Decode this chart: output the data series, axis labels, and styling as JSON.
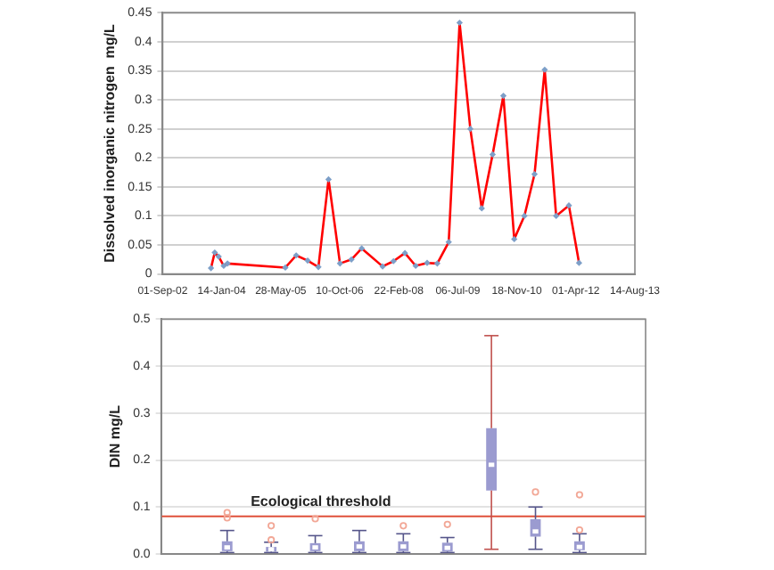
{
  "chart_data": [
    {
      "type": "line",
      "ylabel": "Dissolved inorganic nitrogen  mg/L",
      "x": [
        "2003-10-15",
        "2003-11-16",
        "2003-12-19",
        "2004-01-31",
        "2004-03-03",
        "2005-07-06",
        "2005-10-06",
        "2006-01-11",
        "2006-04-12",
        "2006-07-07",
        "2006-10-12",
        "2007-01-17",
        "2007-04-14",
        "2007-10-08",
        "2008-01-08",
        "2008-04-14",
        "2008-07-14",
        "2008-10-19",
        "2009-01-13",
        "2009-04-20",
        "2009-07-21",
        "2009-10-20",
        "2010-01-25",
        "2010-04-27",
        "2010-07-27",
        "2010-10-27",
        "2011-01-21",
        "2011-04-17",
        "2011-07-12",
        "2011-10-17",
        "2012-02-02",
        "2012-04-28"
      ],
      "series": [
        {
          "color": "#ff0000",
          "values": [
            0.01,
            0.037,
            0.03,
            0.014,
            0.018,
            0.011,
            0.032,
            0.023,
            0.012,
            0.163,
            0.018,
            0.025,
            0.044,
            0.013,
            0.022,
            0.036,
            0.014,
            0.019,
            0.018,
            0.055,
            0.433,
            0.25,
            0.113,
            0.206,
            0.307,
            0.06,
            0.1,
            0.172,
            0.352,
            0.1,
            0.118,
            0.019
          ]
        }
      ],
      "xlim": [
        "2002-09-01",
        "2013-08-14"
      ],
      "xticks": [
        {
          "value": "2002-09-01",
          "label": "01-Sep-02"
        },
        {
          "value": "2004-01-14",
          "label": "14-Jan-04"
        },
        {
          "value": "2005-05-28",
          "label": "28-May-05"
        },
        {
          "value": "2006-10-10",
          "label": "10-Oct-06"
        },
        {
          "value": "2008-02-22",
          "label": "22-Feb-08"
        },
        {
          "value": "2009-07-06",
          "label": "06-Jul-09"
        },
        {
          "value": "2010-11-18",
          "label": "18-Nov-10"
        },
        {
          "value": "2012-04-01",
          "label": "01-Apr-12"
        },
        {
          "value": "2013-08-14",
          "label": "14-Aug-13"
        }
      ],
      "ylim": [
        0,
        0.45
      ],
      "yticks": [
        0,
        0.05,
        0.1,
        0.15,
        0.2,
        0.25,
        0.3,
        0.35,
        0.4,
        0.45
      ],
      "grid": "y",
      "legend": false,
      "marker": "diamond",
      "line_style": "solid"
    },
    {
      "type": "box",
      "ylabel": "DIN mg/L",
      "categories": [
        null,
        null,
        null,
        null,
        null,
        null,
        null,
        null,
        null,
        null,
        null
      ],
      "series": [
        {
          "color": "#9b9bd0",
          "boxes": [
            null,
            {
              "low": 0.003,
              "q1": 0.006,
              "median": 0.014,
              "q3": 0.027,
              "high": 0.05,
              "outliers": [
                0.077,
                0.088
              ]
            },
            {
              "low": 0.003,
              "q1": 0.005,
              "median": 0.01,
              "q3": 0.015,
              "high": 0.025,
              "outliers": [
                0.03,
                0.06
              ]
            },
            {
              "low": 0.003,
              "q1": 0.006,
              "median": 0.014,
              "q3": 0.023,
              "high": 0.039,
              "outliers": [
                0.075
              ]
            },
            {
              "low": 0.003,
              "q1": 0.006,
              "median": 0.016,
              "q3": 0.027,
              "high": 0.05
            },
            {
              "low": 0.003,
              "q1": 0.006,
              "median": 0.016,
              "q3": 0.027,
              "high": 0.043,
              "outliers": [
                0.06
              ]
            },
            {
              "low": 0.003,
              "q1": 0.005,
              "median": 0.013,
              "q3": 0.024,
              "high": 0.035,
              "outliers": [
                0.063
              ]
            },
            {
              "low": 0.01,
              "q1": 0.135,
              "median": 0.19,
              "q3": 0.268,
              "high": 0.465
            },
            {
              "low": 0.01,
              "q1": 0.037,
              "median": 0.048,
              "q3": 0.074,
              "high": 0.1,
              "outliers": [
                0.132
              ]
            },
            {
              "low": 0.003,
              "q1": 0.008,
              "median": 0.015,
              "q3": 0.027,
              "high": 0.043,
              "outliers": [
                0.051,
                0.126
              ]
            },
            null
          ]
        }
      ],
      "ylim": [
        0,
        0.5
      ],
      "yticks": [
        {
          "value": 0,
          "label": "0.0"
        },
        0.1,
        0.2,
        0.3,
        0.4,
        0.5
      ],
      "ref_lines": [
        {
          "axis": "y",
          "value": 0.08,
          "label": "Ecological threshold",
          "color": "#e0503a"
        }
      ],
      "grid": "y",
      "legend": false,
      "tick_labels": "y"
    }
  ]
}
